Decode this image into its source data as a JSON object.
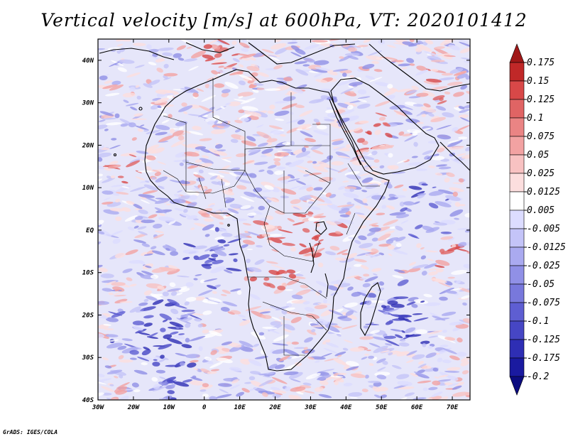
{
  "title": "Vertical velocity [m/s] at 600hPa, VT: 2020101412",
  "credit": "GrADS: IGES/COLA",
  "map": {
    "lon_range": [
      -30,
      75
    ],
    "lat_range": [
      -40,
      45
    ],
    "lon_ticks": [
      {
        "value": -30,
        "label": "30W"
      },
      {
        "value": -20,
        "label": "20W"
      },
      {
        "value": -10,
        "label": "10W"
      },
      {
        "value": 0,
        "label": "0"
      },
      {
        "value": 10,
        "label": "10E"
      },
      {
        "value": 20,
        "label": "20E"
      },
      {
        "value": 30,
        "label": "30E"
      },
      {
        "value": 40,
        "label": "40E"
      },
      {
        "value": 50,
        "label": "50E"
      },
      {
        "value": 60,
        "label": "60E"
      },
      {
        "value": 70,
        "label": "70E"
      }
    ],
    "lat_ticks": [
      {
        "value": 40,
        "label": "40N"
      },
      {
        "value": 30,
        "label": "30N"
      },
      {
        "value": 20,
        "label": "20N"
      },
      {
        "value": 10,
        "label": "10N"
      },
      {
        "value": 0,
        "label": "EQ"
      },
      {
        "value": -10,
        "label": "10S"
      },
      {
        "value": -20,
        "label": "20S"
      },
      {
        "value": -30,
        "label": "30S"
      },
      {
        "value": -40,
        "label": "40S"
      }
    ]
  },
  "colorbar": {
    "levels": [
      "0.175",
      "0.15",
      "0.125",
      "0.1",
      "0.075",
      "0.05",
      "0.025",
      "0.0125",
      "0.005",
      "-0.005",
      "-0.0125",
      "-0.025",
      "-0.05",
      "-0.075",
      "-0.1",
      "-0.125",
      "-0.175",
      "-0.2"
    ],
    "colors": [
      "#a01818",
      "#c02828",
      "#d84848",
      "#e06464",
      "#ea8484",
      "#f2a2a2",
      "#f8c2c2",
      "#fcdede",
      "#ffffff",
      "#dcdcff",
      "#c4c4f8",
      "#aaaaf0",
      "#9090e6",
      "#7878dc",
      "#5e5ed2",
      "#4646c4",
      "#2e2eb4",
      "#1a1aa0",
      "#0c0c80"
    ]
  },
  "colors": {
    "frame": "#000000",
    "ocean_base": "#e6e6fa",
    "land_base": "#ece8f6"
  }
}
